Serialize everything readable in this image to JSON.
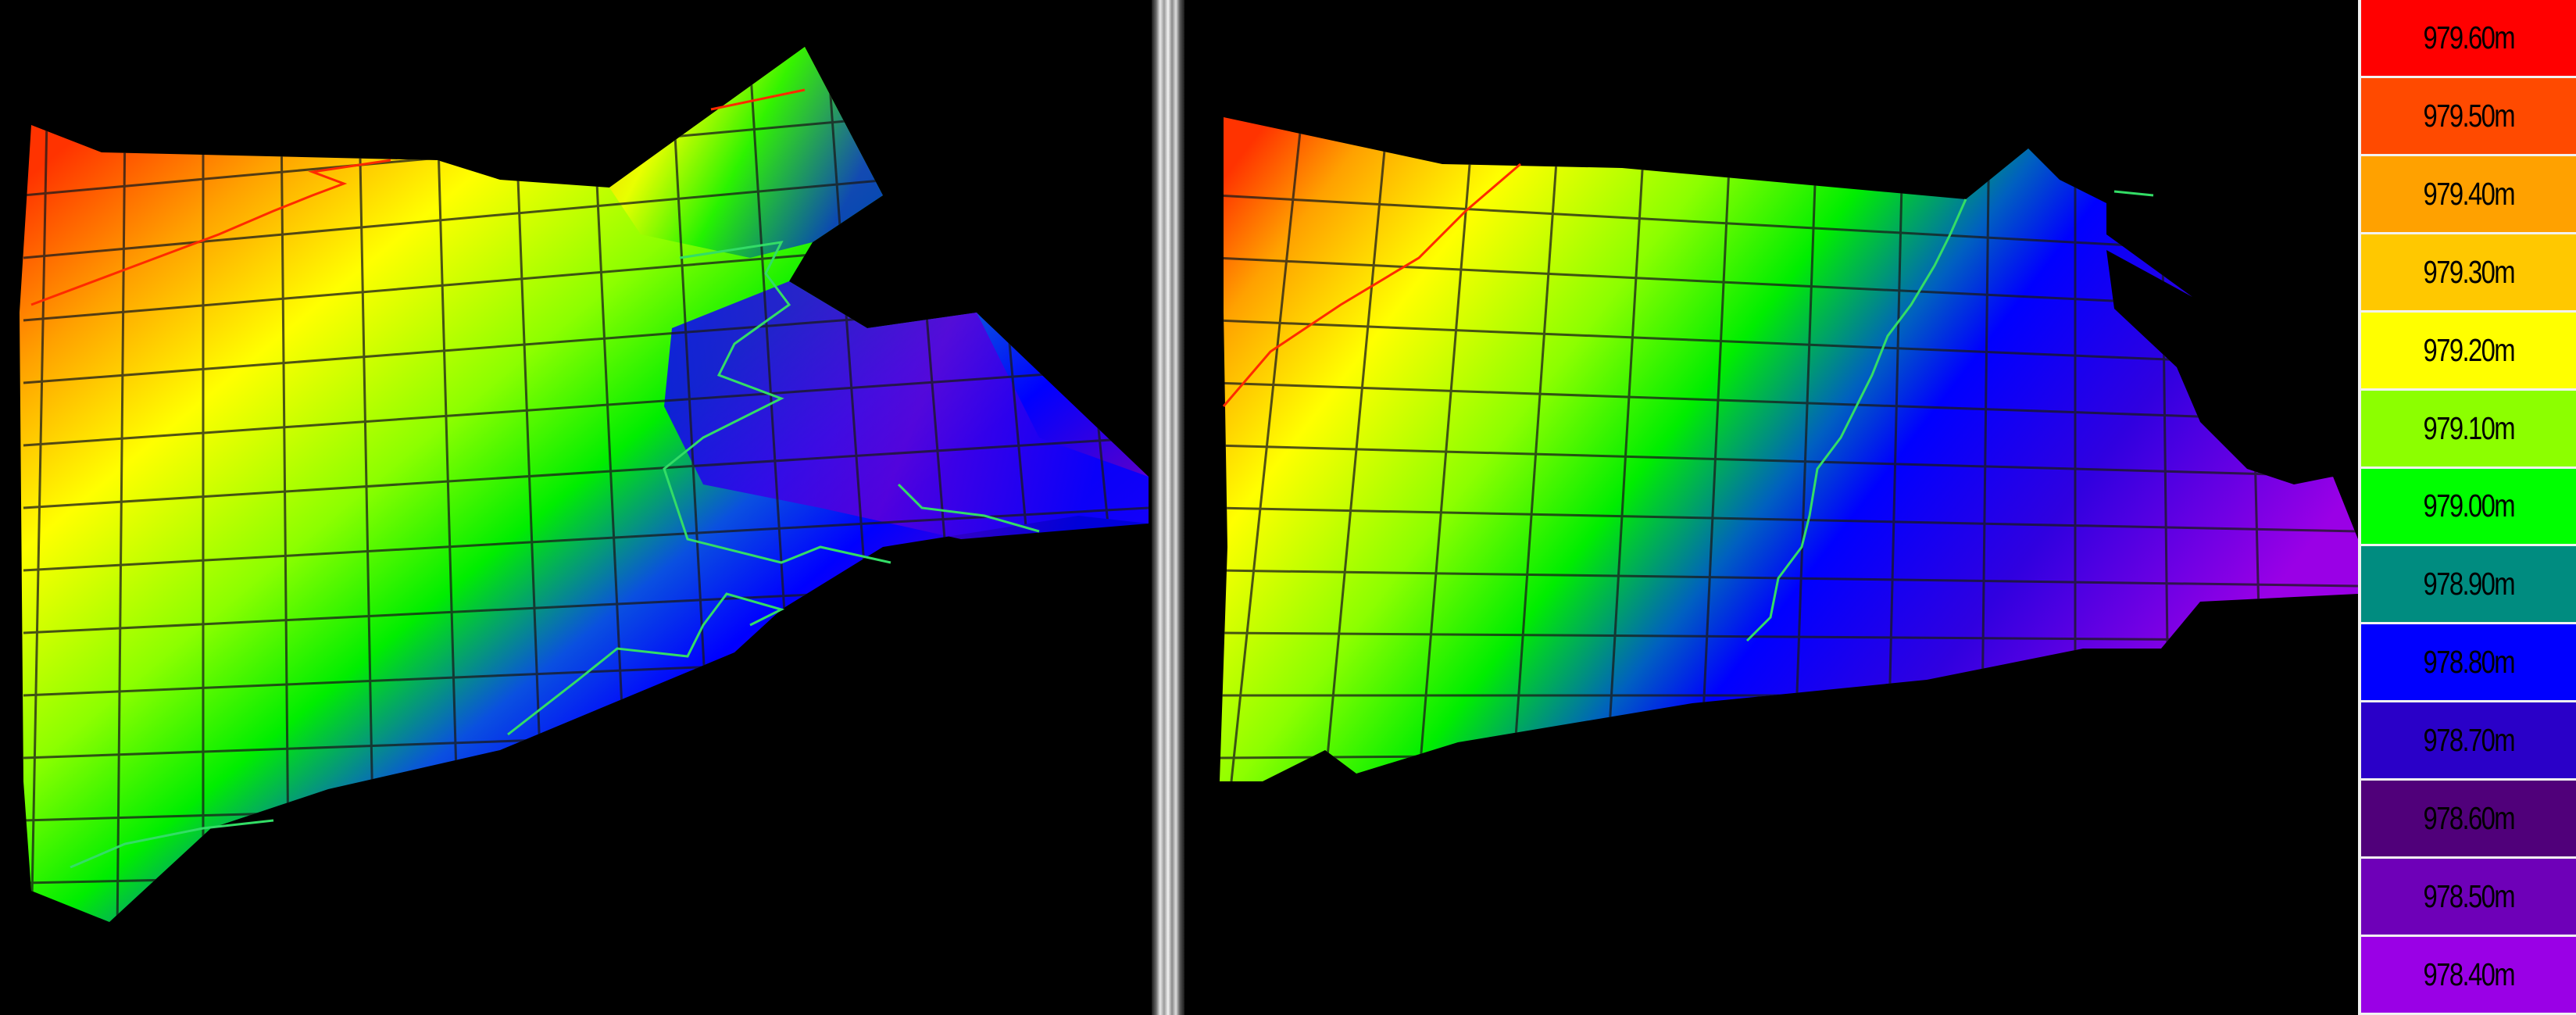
{
  "legend": {
    "items": [
      {
        "label": "979.60m",
        "color": "#ff0000"
      },
      {
        "label": "979.50m",
        "color": "#ff4a00"
      },
      {
        "label": "979.40m",
        "color": "#ffa100"
      },
      {
        "label": "979.30m",
        "color": "#ffc800"
      },
      {
        "label": "979.20m",
        "color": "#ffff00"
      },
      {
        "label": "979.10m",
        "color": "#8cff00"
      },
      {
        "label": "979.00m",
        "color": "#00ff00"
      },
      {
        "label": "978.90m",
        "color": "#008c80"
      },
      {
        "label": "978.80m",
        "color": "#0000ff"
      },
      {
        "label": "978.70m",
        "color": "#2a00c8"
      },
      {
        "label": "978.60m",
        "color": "#50007a"
      },
      {
        "label": "978.50m",
        "color": "#6e00b8"
      },
      {
        "label": "978.40m",
        "color": "#9a00e6"
      }
    ]
  }
}
